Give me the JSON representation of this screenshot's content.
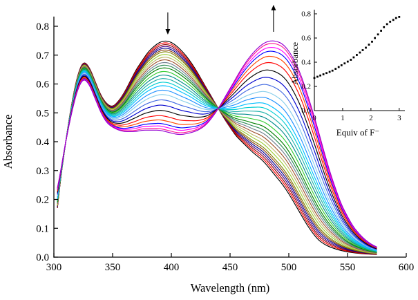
{
  "figure": {
    "background": "#ffffff"
  },
  "chart_data": {
    "type": "line",
    "title": "",
    "main": {
      "xlabel": "Wavelength (nm)",
      "ylabel": "Absorbance",
      "xlim": [
        300,
        600
      ],
      "ylim": [
        0,
        0.8
      ],
      "xticks": [
        "300",
        "350",
        "400",
        "450",
        "500",
        "550",
        "600"
      ],
      "yticks": [
        "0.0",
        "0.1",
        "0.2",
        "0.3",
        "0.4",
        "0.5",
        "0.6",
        "0.7",
        "0.8"
      ],
      "isosbestic_point_nm": 440,
      "arrows": [
        {
          "wavelength": 397,
          "direction": "down"
        },
        {
          "wavelength": 487,
          "direction": "up"
        }
      ],
      "wavelengths": [
        303,
        305,
        310,
        315,
        320,
        325,
        330,
        335,
        340,
        345,
        350,
        355,
        360,
        365,
        370,
        375,
        380,
        385,
        390,
        395,
        400,
        405,
        410,
        415,
        420,
        425,
        430,
        435,
        440,
        445,
        450,
        455,
        460,
        465,
        470,
        475,
        480,
        485,
        490,
        495,
        500,
        505,
        510,
        515,
        520,
        525,
        530,
        535,
        540,
        545,
        550,
        555,
        560,
        565,
        570,
        575
      ],
      "initial_spectrum": [
        0.17,
        0.25,
        0.4,
        0.53,
        0.63,
        0.68,
        0.66,
        0.61,
        0.56,
        0.53,
        0.52,
        0.54,
        0.57,
        0.61,
        0.65,
        0.68,
        0.71,
        0.73,
        0.745,
        0.75,
        0.745,
        0.73,
        0.71,
        0.685,
        0.655,
        0.62,
        0.585,
        0.55,
        0.515,
        0.48,
        0.45,
        0.42,
        0.4,
        0.38,
        0.36,
        0.345,
        0.325,
        0.3,
        0.275,
        0.25,
        0.22,
        0.185,
        0.15,
        0.115,
        0.085,
        0.06,
        0.045,
        0.035,
        0.028,
        0.022,
        0.018,
        0.015,
        0.013,
        0.011,
        0.01,
        0.009
      ],
      "final_spectrum": [
        0.24,
        0.28,
        0.4,
        0.5,
        0.58,
        0.62,
        0.6,
        0.55,
        0.5,
        0.465,
        0.45,
        0.44,
        0.435,
        0.435,
        0.435,
        0.44,
        0.44,
        0.44,
        0.44,
        0.435,
        0.43,
        0.425,
        0.425,
        0.43,
        0.435,
        0.445,
        0.46,
        0.485,
        0.515,
        0.55,
        0.585,
        0.62,
        0.655,
        0.685,
        0.71,
        0.73,
        0.745,
        0.75,
        0.748,
        0.738,
        0.715,
        0.68,
        0.635,
        0.575,
        0.51,
        0.44,
        0.365,
        0.295,
        0.235,
        0.18,
        0.14,
        0.105,
        0.08,
        0.06,
        0.045,
        0.035
      ]
    },
    "inset": {
      "xlabel": "Equiv of F⁻",
      "ylabel": "Absorbance",
      "xlim": [
        0,
        3.2
      ],
      "ylim": [
        0,
        0.8
      ],
      "xticks": [
        "0",
        "1",
        "2",
        "3"
      ],
      "yticks": [
        "0.0",
        "0.2",
        "0.4",
        "0.6",
        "0.8"
      ],
      "equiv": [
        0,
        0.11,
        0.21,
        0.32,
        0.43,
        0.54,
        0.64,
        0.75,
        0.86,
        0.96,
        1.07,
        1.18,
        1.29,
        1.39,
        1.5,
        1.61,
        1.71,
        1.82,
        1.93,
        2.04,
        2.14,
        2.25,
        2.36,
        2.46,
        2.57,
        2.68,
        2.79,
        2.89,
        3.0
      ],
      "absorbance": [
        0.27,
        0.28,
        0.29,
        0.3,
        0.31,
        0.32,
        0.33,
        0.345,
        0.36,
        0.375,
        0.39,
        0.405,
        0.42,
        0.44,
        0.46,
        0.48,
        0.5,
        0.52,
        0.545,
        0.57,
        0.6,
        0.63,
        0.66,
        0.69,
        0.715,
        0.735,
        0.75,
        0.765,
        0.775
      ]
    },
    "palette": [
      "#000000",
      "#ff0000",
      "#8b0000",
      "#4b0082",
      "#00008b",
      "#8b4513",
      "#808000",
      "#9acd32",
      "#bdb76b",
      "#a0522d",
      "#708090",
      "#2e8b57",
      "#008000",
      "#32cd32",
      "#008b8b",
      "#20b2aa",
      "#00ced1",
      "#00bfff",
      "#1e90ff",
      "#87ceeb",
      "#4169e1",
      "#0000cd",
      "#000000",
      "#ff0000",
      "#ff4500",
      "#0000ff",
      "#ff00ff",
      "#ff1493",
      "#9400d3"
    ]
  }
}
